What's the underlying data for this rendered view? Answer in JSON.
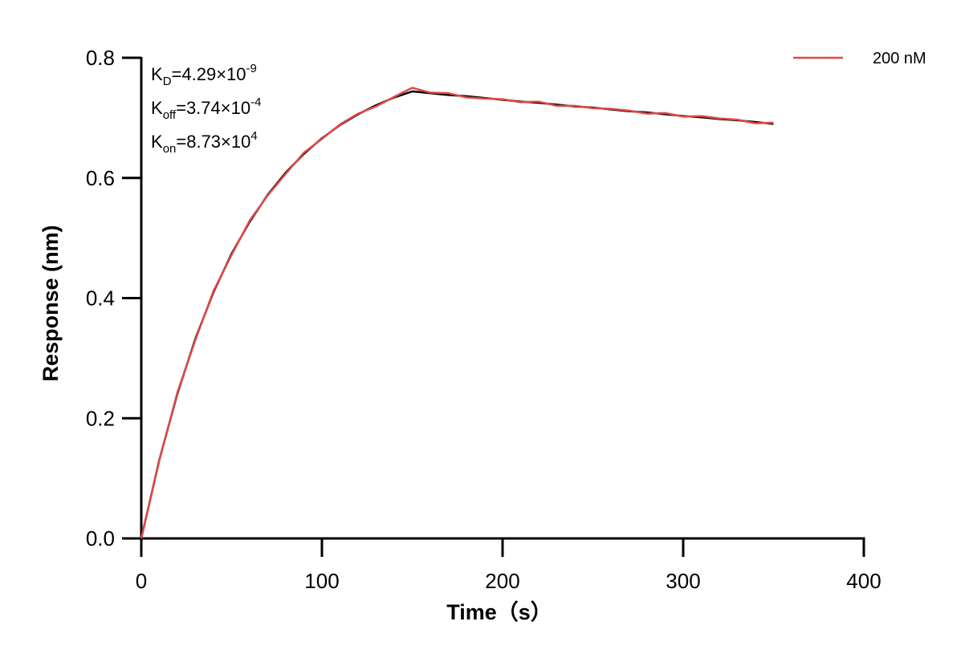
{
  "chart_data": {
    "type": "line",
    "x_label": "Time（s）",
    "y_label": "Response (nm)",
    "xlim": [
      0,
      400
    ],
    "xticks": [
      0,
      100,
      200,
      300,
      400
    ],
    "ylim": [
      0,
      0.8
    ],
    "yticks": [
      {
        "value": 0,
        "label": "0.0"
      },
      0.2,
      0.4,
      0.6,
      0.8
    ],
    "legend": "top-right",
    "annotations": [
      {
        "main": "K",
        "sub": "D",
        "text": "=4.29×10",
        "sup": "-9"
      },
      {
        "main": "K",
        "sub": "off",
        "text": "=3.74×10",
        "sup": "-4"
      },
      {
        "main": "K",
        "sub": "on",
        "text": "=8.73×10",
        "sup": "4"
      }
    ],
    "x": [
      0,
      10,
      20,
      30,
      40,
      50,
      60,
      70,
      80,
      90,
      100,
      110,
      120,
      130,
      140,
      150,
      160,
      170,
      180,
      190,
      200,
      210,
      220,
      230,
      240,
      250,
      260,
      270,
      280,
      290,
      300,
      310,
      320,
      330,
      340,
      350
    ],
    "series": [
      {
        "color": "#000000",
        "values": [
          0,
          0.131,
          0.241,
          0.333,
          0.41,
          0.474,
          0.527,
          0.572,
          0.609,
          0.64,
          0.666,
          0.688,
          0.706,
          0.721,
          0.734,
          0.744,
          0.741,
          0.738,
          0.736,
          0.733,
          0.73,
          0.727,
          0.725,
          0.722,
          0.719,
          0.717,
          0.714,
          0.711,
          0.709,
          0.706,
          0.703,
          0.701,
          0.698,
          0.696,
          0.693,
          0.69
        ]
      },
      {
        "name": "200 nM",
        "color": "#e04848",
        "values": [
          0,
          0.13,
          0.243,
          0.331,
          0.412,
          0.472,
          0.529,
          0.571,
          0.607,
          0.642,
          0.665,
          0.689,
          0.707,
          0.719,
          0.735,
          0.75,
          0.742,
          0.741,
          0.734,
          0.732,
          0.731,
          0.726,
          0.727,
          0.72,
          0.72,
          0.716,
          0.715,
          0.712,
          0.707,
          0.708,
          0.702,
          0.703,
          0.699,
          0.697,
          0.691,
          0.692
        ]
      }
    ]
  }
}
